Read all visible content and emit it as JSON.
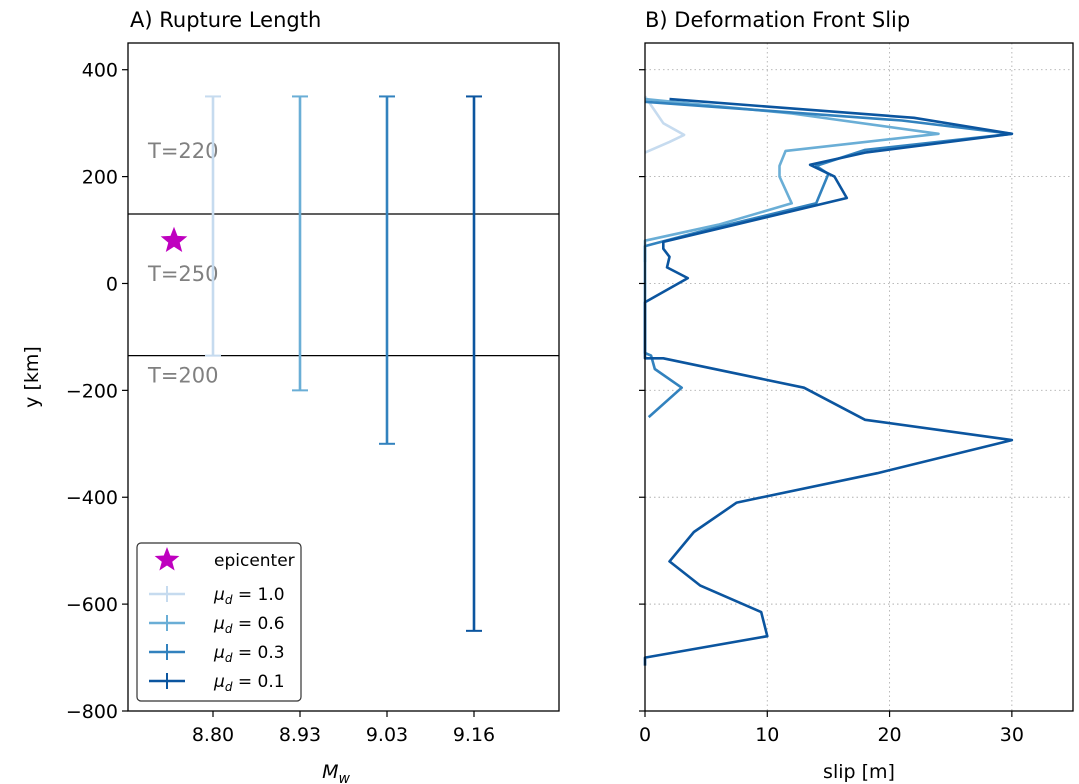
{
  "chart_data": [
    {
      "type": "errorbar",
      "title": "A) Rupture Length",
      "xlabel": "M",
      "xlabel_sub": "w",
      "ylabel": "y [km]",
      "ylim": [
        -800,
        450
      ],
      "yticks": [
        400,
        200,
        0,
        -200,
        -400,
        -600,
        -800
      ],
      "ytick_labels": [
        "400",
        "200",
        "0",
        "−200",
        "−400",
        "−600",
        "−800"
      ],
      "xticks": [
        "8.80",
        "8.93",
        "9.03",
        "9.16"
      ],
      "region_boundaries": [
        130,
        -135
      ],
      "regions": [
        {
          "label": "T=220",
          "y": 235
        },
        {
          "label": "T=250",
          "y": 5
        },
        {
          "label": "T=200",
          "y": -185
        }
      ],
      "epicenter": {
        "label": "epicenter",
        "y": 80,
        "color": "#bf00bf"
      },
      "series": [
        {
          "name": "μ",
          "sub": "d",
          "rest": " = 1.0",
          "mw": "8.80",
          "y_top": 350,
          "y_bottom": -135,
          "color": "#c6dbef"
        },
        {
          "name": "μ",
          "sub": "d",
          "rest": " = 0.6",
          "mw": "8.93",
          "y_top": 350,
          "y_bottom": -200,
          "color": "#6aaed6"
        },
        {
          "name": "μ",
          "sub": "d",
          "rest": " = 0.3",
          "mw": "9.03",
          "y_top": 350,
          "y_bottom": -300,
          "color": "#3282be"
        },
        {
          "name": "μ",
          "sub": "d",
          "rest": " = 0.1",
          "mw": "9.16",
          "y_top": 350,
          "y_bottom": -650,
          "color": "#0b559f"
        }
      ],
      "legend_placement": "lower-left"
    },
    {
      "type": "line",
      "title": "B) Deformation Front Slip",
      "xlabel": "slip [m]",
      "xlim": [
        0,
        35
      ],
      "xticks": [
        0,
        10,
        20,
        30
      ],
      "ylim": [
        -800,
        450
      ],
      "grid": true,
      "series": [
        {
          "color": "#c6dbef",
          "points": [
            [
              0,
              350
            ],
            [
              1.5,
              300
            ],
            [
              3.2,
              278
            ],
            [
              2,
              265
            ],
            [
              0,
              245
            ]
          ]
        },
        {
          "color": "#6aaed6",
          "points": [
            [
              0,
              345
            ],
            [
              12,
              318
            ],
            [
              24,
              280
            ],
            [
              11.5,
              248
            ],
            [
              11,
              220
            ],
            [
              11,
              200
            ],
            [
              12,
              150
            ],
            [
              6,
              110
            ],
            [
              0,
              80
            ],
            [
              0,
              60
            ],
            [
              0,
              40
            ]
          ]
        },
        {
          "color": "#3282be",
          "points": [
            [
              0,
              340
            ],
            [
              21,
              305
            ],
            [
              30,
              280
            ],
            [
              18,
              250
            ],
            [
              14,
              220
            ],
            [
              15,
              205
            ],
            [
              14,
              150
            ],
            [
              5,
              100
            ],
            [
              0,
              70
            ],
            [
              0,
              50
            ],
            [
              0,
              -130
            ],
            [
              0.5,
              -135
            ],
            [
              0.8,
              -160
            ],
            [
              3,
              -195
            ],
            [
              0.3,
              -250
            ]
          ]
        },
        {
          "color": "#0b559f",
          "points": [
            [
              2,
              345
            ],
            [
              22,
              310
            ],
            [
              30,
              280
            ],
            [
              18,
              245
            ],
            [
              13.5,
              222
            ],
            [
              15.5,
              200
            ],
            [
              16.5,
              160
            ],
            [
              1.5,
              78
            ],
            [
              1.5,
              65
            ],
            [
              2,
              50
            ],
            [
              1.8,
              30
            ],
            [
              3.5,
              10
            ],
            [
              0,
              -35
            ],
            [
              0,
              -140
            ],
            [
              1.5,
              -140
            ],
            [
              13,
              -195
            ],
            [
              18,
              -255
            ],
            [
              30,
              -293
            ],
            [
              19,
              -355
            ],
            [
              7.5,
              -410
            ],
            [
              4,
              -465
            ],
            [
              2,
              -520
            ],
            [
              4.5,
              -565
            ],
            [
              9.5,
              -615
            ],
            [
              10,
              -660
            ],
            [
              0,
              -700
            ],
            [
              0,
              -715
            ]
          ]
        }
      ]
    }
  ]
}
